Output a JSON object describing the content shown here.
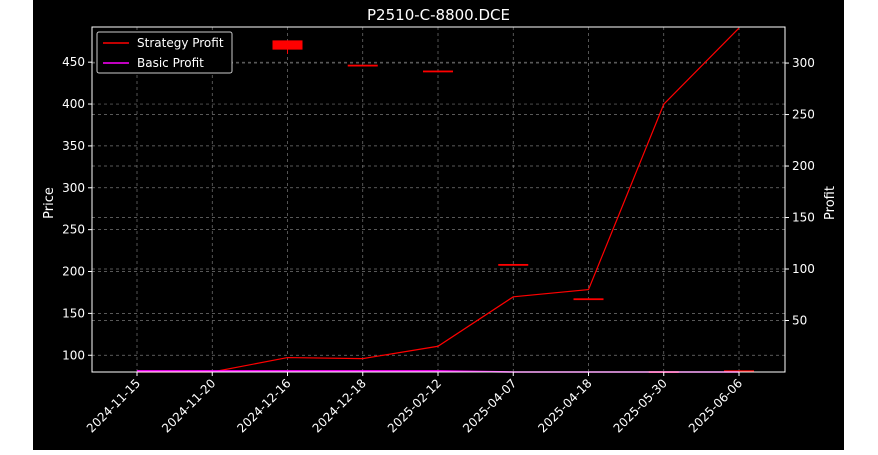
{
  "chart_data": {
    "type": "candlestick+line",
    "title": "P2510-C-8800.DCE",
    "xlabel": "",
    "ylabel_left": "Price",
    "ylabel_right": "Profit",
    "categories": [
      "2024-11-15",
      "2024-11-20",
      "2024-12-16",
      "2024-12-18",
      "2025-02-12",
      "2025-04-07",
      "2025-04-18",
      "2025-05-30",
      "2025-06-06"
    ],
    "left_axis": {
      "ylim": [
        80,
        492
      ],
      "ticks": [
        100,
        150,
        200,
        250,
        300,
        350,
        400,
        450
      ]
    },
    "right_axis": {
      "ylim": [
        0,
        335
      ],
      "ticks": [
        50,
        100,
        150,
        200,
        250,
        300
      ]
    },
    "grid": true,
    "legend_position": "top-left",
    "candles": [
      {
        "x": "2024-12-16",
        "open": 476,
        "close": 465,
        "high": 476,
        "low": 460
      },
      {
        "x": "2024-12-18",
        "open": 447,
        "close": 447,
        "high": 447,
        "low": 447
      },
      {
        "x": "2025-02-12",
        "open": 440,
        "close": 438,
        "high": 440,
        "low": 438
      },
      {
        "x": "2025-04-07",
        "open": 209,
        "close": 209,
        "high": 209,
        "low": 209
      },
      {
        "x": "2025-04-18",
        "open": 168,
        "close": 168,
        "high": 168,
        "low": 168
      },
      {
        "x": "2025-05-30",
        "open": 81,
        "close": 81,
        "high": 81,
        "low": 81
      },
      {
        "x": "2025-06-06",
        "open": 82,
        "close": 82,
        "high": 82,
        "low": 82
      }
    ],
    "series": [
      {
        "name": "Strategy Profit",
        "color": "#ff0000",
        "values": [
          0,
          0,
          14,
          13,
          25,
          73,
          80,
          260,
          334
        ]
      },
      {
        "name": "Basic Profit",
        "color": "#ff00ff",
        "values": [
          1,
          1,
          1,
          1,
          1,
          0,
          0,
          0,
          0
        ]
      }
    ]
  }
}
